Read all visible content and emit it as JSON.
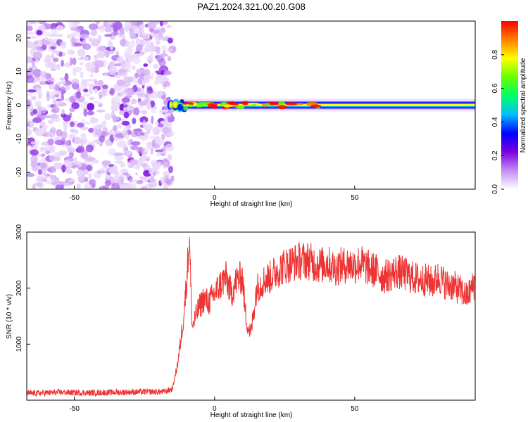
{
  "chart_data": [
    {
      "type": "heatmap",
      "title": "PAZ1.2024.321.00.20.G08",
      "xlabel": "Height of straight line (km)",
      "ylabel": "Frequency (Hz)",
      "xlim": [
        -67,
        93
      ],
      "ylim": [
        -25,
        25
      ],
      "x_ticks": [
        -50,
        0,
        50
      ],
      "x_tick_labels": [
        "-50",
        "0",
        "50"
      ],
      "y_ticks": [
        -20,
        -10,
        0,
        10,
        20
      ],
      "y_tick_labels": [
        "-20",
        "-10",
        "0",
        "10",
        "20"
      ],
      "grid": false,
      "noise_region": {
        "x": [
          -67,
          -15
        ],
        "y": [
          -25,
          25
        ]
      },
      "signal_band": {
        "x": [
          -16,
          93
        ],
        "center_frequency": 0
      },
      "colorbar": {
        "label": "Normalized spectral amplitude",
        "range": [
          0.0,
          1.0
        ],
        "ticks": [
          0.0,
          0.2,
          0.4,
          0.6,
          0.8
        ],
        "tick_labels": [
          "0.0",
          "0.2",
          "0.4",
          "0.6",
          "0.8"
        ],
        "colors": [
          "#ffffff",
          "#c48cf2",
          "#7a00e0",
          "#0000ff",
          "#00bfff",
          "#00ff66",
          "#66ff00",
          "#ffff00",
          "#ff8000",
          "#ff0000"
        ]
      }
    },
    {
      "type": "line",
      "xlabel": "Height of straight line (km)",
      "ylabel": "SNR (10 * v/v)",
      "xlim": [
        -67,
        93
      ],
      "ylim": [
        0,
        3000
      ],
      "x_ticks": [
        -50,
        0,
        50
      ],
      "x_tick_labels": [
        "-50",
        "0",
        "50"
      ],
      "y_ticks": [
        1000,
        2000,
        3000
      ],
      "y_tick_labels": [
        "1000",
        "2000",
        "3000"
      ],
      "grid": false,
      "line_color": "#ee3333",
      "x": [
        -67,
        -55,
        -45,
        -35,
        -25,
        -18,
        -15,
        -13,
        -11,
        -10,
        -9,
        -8,
        -6,
        -4,
        -2,
        0,
        2,
        4,
        6,
        8,
        10,
        11,
        12,
        13,
        15,
        18,
        20,
        22,
        25,
        28,
        30,
        33,
        35,
        38,
        40,
        43,
        45,
        48,
        50,
        52,
        55,
        58,
        60,
        63,
        65,
        68,
        70,
        73,
        75,
        78,
        80,
        83,
        85,
        88,
        90,
        93
      ],
      "values": [
        120,
        140,
        130,
        140,
        150,
        150,
        200,
        700,
        1500,
        2100,
        2900,
        1300,
        1600,
        1800,
        1750,
        1900,
        2050,
        2200,
        1900,
        2150,
        2200,
        1550,
        1300,
        1200,
        2000,
        2150,
        2200,
        2300,
        2400,
        2450,
        2480,
        2500,
        2450,
        2400,
        2450,
        2350,
        2400,
        2420,
        2400,
        2450,
        2350,
        2300,
        2200,
        2250,
        2300,
        2250,
        2200,
        2150,
        2150,
        2100,
        2200,
        2050,
        2050,
        1950,
        1850,
        2100
      ]
    }
  ]
}
